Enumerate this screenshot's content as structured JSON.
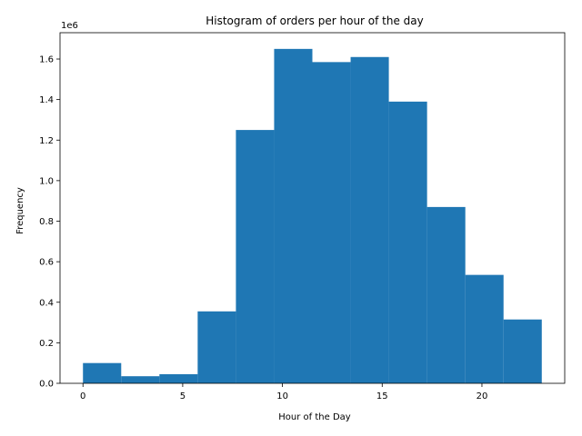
{
  "chart_data": {
    "type": "bar",
    "title": "Histogram of orders per hour of the day",
    "xlabel": "Hour of the Day",
    "ylabel": "Frequency",
    "offset_label": "1e6",
    "bar_color": "#1f77b4",
    "bin_edges": [
      0,
      1.917,
      3.833,
      5.75,
      7.667,
      9.583,
      11.5,
      13.417,
      15.333,
      17.25,
      19.167,
      21.083,
      23
    ],
    "values": [
      0.1,
      0.035,
      0.045,
      0.355,
      1.25,
      1.65,
      1.585,
      1.61,
      1.39,
      0.87,
      0.535,
      0.315
    ],
    "xlim": [
      -1.15,
      24.15
    ],
    "ylim": [
      0,
      1.73
    ],
    "x_ticks": [
      0,
      5,
      10,
      15,
      20
    ],
    "x_tick_labels": [
      "0",
      "5",
      "10",
      "15",
      "20"
    ],
    "y_ticks": [
      0,
      0.2,
      0.4,
      0.6,
      0.8,
      1.0,
      1.2,
      1.4,
      1.6
    ],
    "y_tick_labels": [
      "0.0",
      "0.2",
      "0.4",
      "0.6",
      "0.8",
      "1.0",
      "1.2",
      "1.4",
      "1.6"
    ],
    "grid": false
  }
}
